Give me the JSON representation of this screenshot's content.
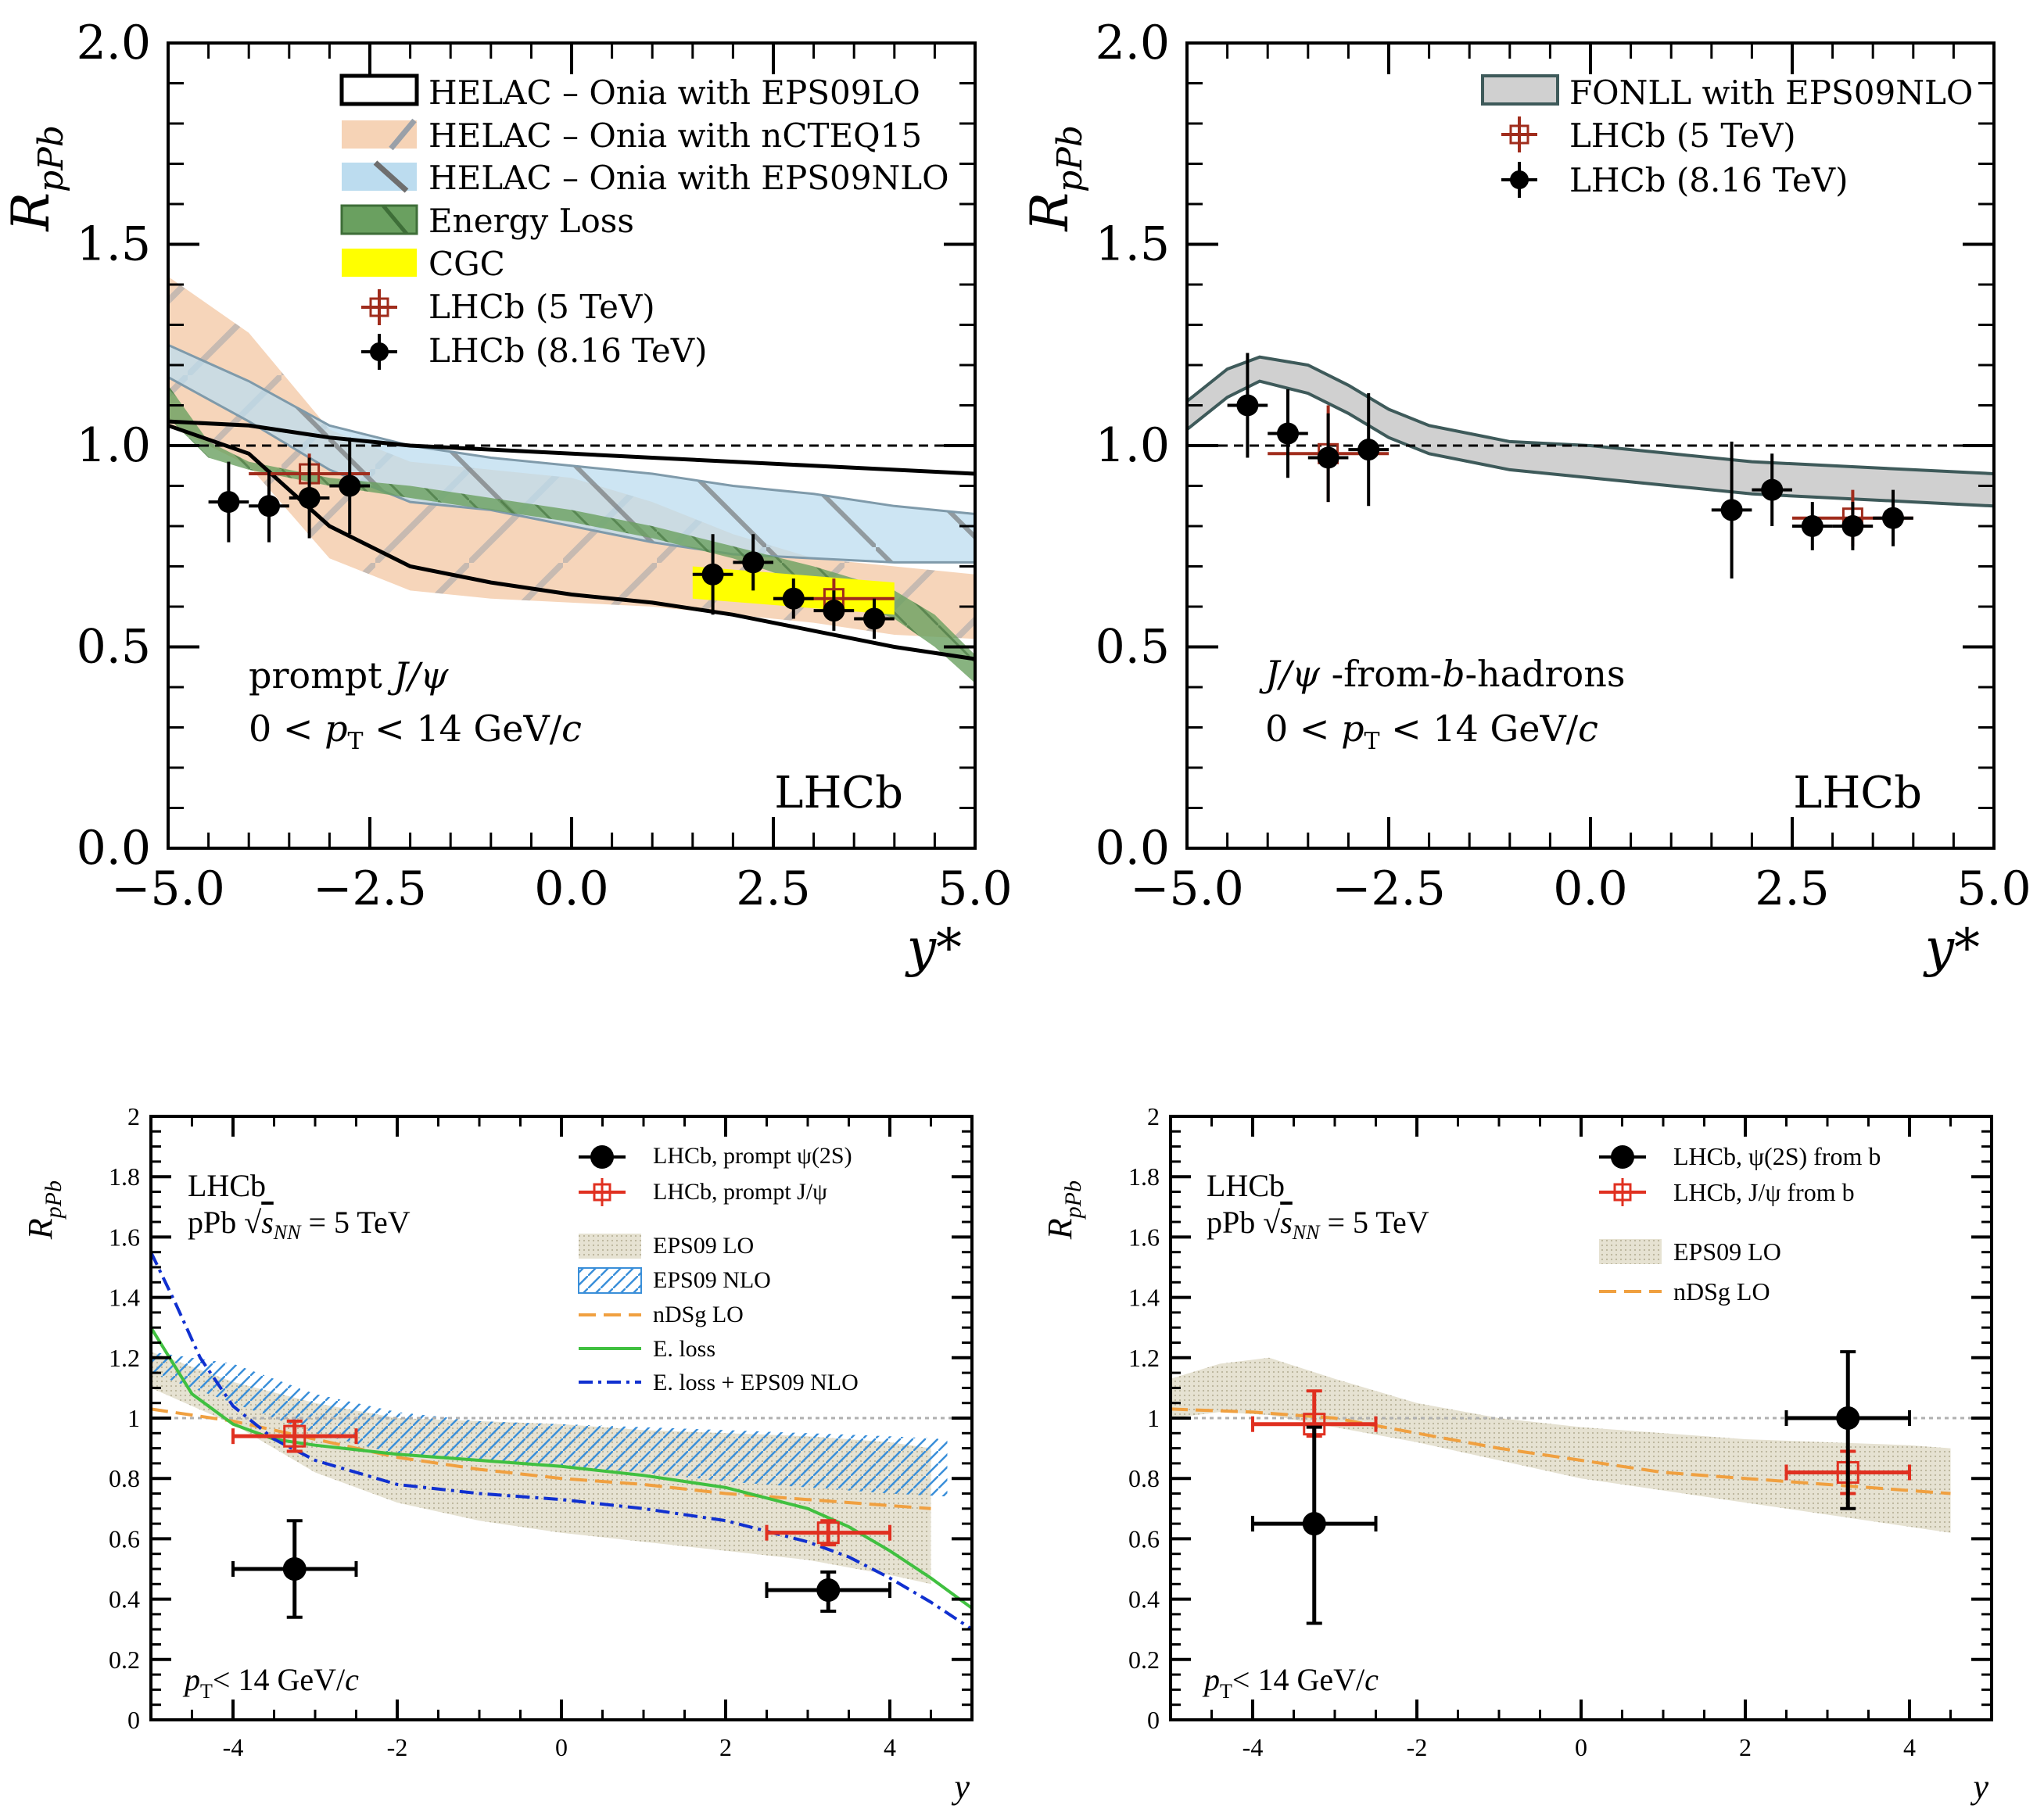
{
  "chart_data": [
    {
      "id": "panel-a",
      "type": "line",
      "ylabel_main": "R",
      "ylabel_sub": "pPb",
      "xlabel": "y*",
      "xlim": [
        -5,
        5
      ],
      "ylim": [
        0,
        2
      ],
      "xticks": [
        "−5.0",
        "−2.5",
        "0.0",
        "2.5",
        "5.0"
      ],
      "xtick_values": [
        -5,
        -2.5,
        0,
        2.5,
        5
      ],
      "yticks": [
        "0.0",
        "0.5",
        "1.0",
        "1.5",
        "2.0"
      ],
      "ytick_values": [
        0,
        0.5,
        1,
        1.5,
        2
      ],
      "reference_line": 1.0,
      "legend": [
        "HELAC – Onia with EPS09LO",
        "HELAC – Onia with nCTEQ15",
        "HELAC – Onia with EPS09NLO",
        "Energy Loss",
        "CGC",
        "LHCb (5 TeV)",
        "LHCb (8.16 TeV)"
      ],
      "annotations": [
        "prompt J/ψ",
        "0 < pT < 14 GeV/c",
        "LHCb"
      ],
      "bands": [
        {
          "name": "HELAC-Onia with EPS09LO",
          "x": [
            -5,
            -4,
            -3,
            -2,
            -1,
            0,
            1,
            2,
            3,
            4,
            5
          ],
          "low": [
            1.05,
            0.98,
            0.8,
            0.7,
            0.66,
            0.63,
            0.61,
            0.58,
            0.54,
            0.5,
            0.47
          ],
          "high": [
            1.06,
            1.05,
            1.02,
            1.0,
            0.99,
            0.98,
            0.97,
            0.96,
            0.95,
            0.94,
            0.93
          ]
        },
        {
          "name": "HELAC-Onia with nCTEQ15",
          "x": [
            -5,
            -4,
            -3,
            -2,
            -1,
            0,
            1,
            2,
            3,
            4,
            5
          ],
          "low": [
            1.05,
            0.95,
            0.72,
            0.64,
            0.62,
            0.61,
            0.6,
            0.58,
            0.56,
            0.53,
            0.52
          ],
          "high": [
            1.42,
            1.28,
            1.04,
            0.96,
            0.94,
            0.92,
            0.86,
            0.78,
            0.72,
            0.7,
            0.68
          ]
        },
        {
          "name": "HELAC-Onia with EPS09NLO",
          "x": [
            -5,
            -4,
            -3,
            -2,
            -1,
            0,
            1,
            2,
            3,
            4,
            5
          ],
          "low": [
            1.17,
            1.06,
            0.94,
            0.86,
            0.84,
            0.8,
            0.76,
            0.73,
            0.72,
            0.71,
            0.71
          ],
          "high": [
            1.25,
            1.16,
            1.05,
            1.0,
            0.97,
            0.95,
            0.93,
            0.9,
            0.88,
            0.85,
            0.83
          ]
        },
        {
          "name": "Energy Loss",
          "x": [
            -5,
            -4.5,
            -4,
            -3,
            -2,
            -1,
            0,
            1,
            2,
            3,
            3.5,
            4,
            4.5,
            5
          ],
          "low": [
            1.07,
            0.97,
            0.94,
            0.9,
            0.87,
            0.84,
            0.81,
            0.77,
            0.72,
            0.65,
            0.61,
            0.57,
            0.5,
            0.41
          ],
          "high": [
            1.15,
            1.01,
            0.96,
            0.92,
            0.9,
            0.87,
            0.84,
            0.8,
            0.75,
            0.7,
            0.67,
            0.64,
            0.58,
            0.48
          ]
        },
        {
          "name": "CGC",
          "x": [
            1.5,
            4.0
          ],
          "low": [
            0.62,
            0.58
          ],
          "high": [
            0.7,
            0.66
          ]
        }
      ],
      "series": [
        {
          "name": "LHCb (8.16 TeV)",
          "x": [
            -4.25,
            -3.75,
            -3.25,
            -2.75,
            1.75,
            2.25,
            2.75,
            3.25,
            3.75
          ],
          "y": [
            0.86,
            0.85,
            0.87,
            0.9,
            0.68,
            0.71,
            0.62,
            0.59,
            0.57
          ],
          "yerr": [
            0.1,
            0.09,
            0.1,
            0.12,
            0.1,
            0.07,
            0.05,
            0.05,
            0.05
          ],
          "xerr": 0.25
        },
        {
          "name": "LHCb (5 TeV)",
          "x": [
            -3.25,
            3.25
          ],
          "y": [
            0.93,
            0.62
          ],
          "yerr": [
            0.05,
            0.05
          ],
          "xerr": 0.75
        }
      ]
    },
    {
      "id": "panel-b",
      "type": "line",
      "ylabel_main": "R",
      "ylabel_sub": "pPb",
      "xlabel": "y*",
      "xlim": [
        -5,
        5
      ],
      "ylim": [
        0,
        2
      ],
      "xticks": [
        "−5.0",
        "−2.5",
        "0.0",
        "2.5",
        "5.0"
      ],
      "xtick_values": [
        -5,
        -2.5,
        0,
        2.5,
        5
      ],
      "yticks": [
        "0.0",
        "0.5",
        "1.0",
        "1.5",
        "2.0"
      ],
      "ytick_values": [
        0,
        0.5,
        1,
        1.5,
        2
      ],
      "reference_line": 1.0,
      "legend": [
        "FONLL with EPS09NLO",
        "LHCb (5 TeV)",
        "LHCb (8.16 TeV)"
      ],
      "annotations": [
        "J/ψ -from-b-hadrons",
        "0 < pT < 14 GeV/c",
        "LHCb"
      ],
      "bands": [
        {
          "name": "FONLL with EPS09NLO",
          "x": [
            -5,
            -4.5,
            -4.1,
            -3.5,
            -3,
            -2.5,
            -2,
            -1,
            0,
            1,
            2,
            3,
            4,
            5
          ],
          "low": [
            1.04,
            1.12,
            1.16,
            1.13,
            1.08,
            1.02,
            0.98,
            0.94,
            0.92,
            0.9,
            0.88,
            0.87,
            0.86,
            0.85
          ],
          "high": [
            1.11,
            1.19,
            1.22,
            1.2,
            1.15,
            1.09,
            1.05,
            1.01,
            1.0,
            0.98,
            0.96,
            0.95,
            0.94,
            0.93
          ]
        }
      ],
      "series": [
        {
          "name": "LHCb (8.16 TeV)",
          "x": [
            -4.25,
            -3.75,
            -3.25,
            -2.75,
            1.75,
            2.25,
            2.75,
            3.25,
            3.75
          ],
          "y": [
            1.1,
            1.03,
            0.97,
            0.99,
            0.84,
            0.89,
            0.8,
            0.8,
            0.82
          ],
          "yerr": [
            0.13,
            0.11,
            0.11,
            0.14,
            0.17,
            0.09,
            0.06,
            0.06,
            0.07
          ],
          "xerr": 0.25
        },
        {
          "name": "LHCb (5 TeV)",
          "x": [
            -3.25,
            3.25
          ],
          "y": [
            0.98,
            0.82
          ],
          "yerr": [
            0.12,
            0.07
          ],
          "xerr": 0.75
        }
      ]
    },
    {
      "id": "panel-c",
      "type": "line",
      "ylabel_main": "R",
      "ylabel_sub": "pPb",
      "xlabel": "y",
      "xlim": [
        -5,
        5
      ],
      "ylim": [
        0,
        2
      ],
      "xticks": [
        "-4",
        "-2",
        "0",
        "2",
        "4"
      ],
      "xtick_values": [
        -4,
        -2,
        0,
        2,
        4
      ],
      "yticks": [
        "0",
        "0.2",
        "0.4",
        "0.6",
        "0.8",
        "1",
        "1.2",
        "1.4",
        "1.6",
        "1.8",
        "2"
      ],
      "ytick_values": [
        0,
        0.2,
        0.4,
        0.6,
        0.8,
        1,
        1.2,
        1.4,
        1.6,
        1.8,
        2
      ],
      "reference_line": 1.0,
      "legend": [
        "LHCb, prompt ψ(2S)",
        "LHCb, prompt J/ψ",
        "EPS09 LO",
        "EPS09 NLO",
        "nDSg LO",
        "E. loss",
        "E. loss + EPS09 NLO"
      ],
      "annotations": [
        "LHCb",
        "pPb √sNN = 5 TeV",
        "pT < 14 GeV/c"
      ],
      "bands": [
        {
          "name": "EPS09 LO",
          "x": [
            -5,
            -4,
            -3,
            -2,
            -1,
            0,
            1,
            2,
            3,
            4,
            4.5
          ],
          "low": [
            1.1,
            0.98,
            0.82,
            0.72,
            0.66,
            0.62,
            0.59,
            0.56,
            0.53,
            0.48,
            0.45
          ],
          "high": [
            1.22,
            1.12,
            1.05,
            1.0,
            0.99,
            0.98,
            0.96,
            0.95,
            0.94,
            0.92,
            0.9
          ]
        },
        {
          "name": "EPS09 NLO",
          "x": [
            -5,
            -4,
            -3,
            -2,
            -1,
            0,
            1,
            2,
            3,
            4,
            4.7
          ],
          "low": [
            1.15,
            1.05,
            0.95,
            0.88,
            0.86,
            0.84,
            0.82,
            0.79,
            0.77,
            0.75,
            0.74
          ],
          "high": [
            1.22,
            1.18,
            1.08,
            1.02,
            0.99,
            0.98,
            0.97,
            0.96,
            0.95,
            0.94,
            0.93
          ]
        }
      ],
      "curves": [
        {
          "name": "nDSg LO",
          "x": [
            -5,
            -4,
            -3,
            -2,
            -1,
            0,
            1,
            2,
            3,
            4,
            4.5
          ],
          "y": [
            1.03,
            0.99,
            0.93,
            0.87,
            0.83,
            0.8,
            0.78,
            0.75,
            0.73,
            0.71,
            0.7
          ]
        },
        {
          "name": "E. loss",
          "x": [
            -5,
            -4.5,
            -4,
            -3.5,
            -3,
            -2,
            -1,
            0,
            1,
            2,
            3,
            3.5,
            4,
            4.5,
            5
          ],
          "y": [
            1.3,
            1.08,
            0.98,
            0.93,
            0.91,
            0.88,
            0.86,
            0.84,
            0.81,
            0.77,
            0.7,
            0.64,
            0.56,
            0.47,
            0.37
          ]
        },
        {
          "name": "E. loss + EPS09 NLO",
          "x": [
            -5,
            -4.7,
            -4.4,
            -4,
            -3.5,
            -3,
            -2,
            -1,
            0,
            1,
            2,
            3,
            3.5,
            4,
            4.5,
            5
          ],
          "y": [
            1.55,
            1.38,
            1.2,
            1.04,
            0.93,
            0.86,
            0.78,
            0.75,
            0.73,
            0.7,
            0.66,
            0.59,
            0.54,
            0.47,
            0.39,
            0.3
          ]
        }
      ],
      "series": [
        {
          "name": "LHCb, prompt ψ(2S)",
          "x": [
            -3.25,
            3.25
          ],
          "y": [
            0.5,
            0.43
          ],
          "yerr_up": [
            0.16,
            0.06
          ],
          "yerr_down": [
            0.16,
            0.07
          ],
          "xerr": 0.75
        },
        {
          "name": "LHCb, prompt J/ψ",
          "x": [
            -3.25,
            3.25
          ],
          "y": [
            0.94,
            0.62
          ],
          "yerr_up": [
            0.05,
            0.04
          ],
          "yerr_down": [
            0.05,
            0.04
          ],
          "xerr": 0.75
        }
      ]
    },
    {
      "id": "panel-d",
      "type": "line",
      "ylabel_main": "R",
      "ylabel_sub": "pPb",
      "xlabel": "y",
      "xlim": [
        -5,
        5
      ],
      "ylim": [
        0,
        2
      ],
      "xticks": [
        "-4",
        "-2",
        "0",
        "2",
        "4"
      ],
      "xtick_values": [
        -4,
        -2,
        0,
        2,
        4
      ],
      "yticks": [
        "0",
        "0.2",
        "0.4",
        "0.6",
        "0.8",
        "1",
        "1.2",
        "1.4",
        "1.6",
        "1.8",
        "2"
      ],
      "ytick_values": [
        0,
        0.2,
        0.4,
        0.6,
        0.8,
        1,
        1.2,
        1.4,
        1.6,
        1.8,
        2
      ],
      "reference_line": 1.0,
      "legend": [
        "LHCb, ψ(2S) from b",
        "LHCb, J/ψ from b",
        "EPS09 LO",
        "nDSg LO"
      ],
      "annotations": [
        "LHCb",
        "pPb √sNN = 5 TeV",
        "pT < 14 GeV/c"
      ],
      "bands": [
        {
          "name": "EPS09 LO",
          "x": [
            -5,
            -4.4,
            -3.8,
            -3,
            -2,
            -1,
            0,
            1,
            2,
            3,
            4,
            4.5
          ],
          "low": [
            1.0,
            1.02,
            1.01,
            0.97,
            0.92,
            0.86,
            0.8,
            0.76,
            0.72,
            0.68,
            0.64,
            0.62
          ]
        },
        {
          "name": "EPS09 LO upper",
          "x": [
            -5,
            -4.4,
            -3.8,
            -3,
            -2,
            -1,
            0,
            1,
            2,
            3,
            4,
            4.5
          ],
          "low": [
            1.13,
            1.18,
            1.2,
            1.13,
            1.05,
            1.0,
            0.97,
            0.95,
            0.93,
            0.92,
            0.91,
            0.9
          ]
        }
      ],
      "curves": [
        {
          "name": "nDSg LO",
          "x": [
            -5,
            -4,
            -3,
            -2,
            -1,
            0,
            1,
            2,
            3,
            4,
            4.5
          ],
          "y": [
            1.03,
            1.02,
            1.0,
            0.95,
            0.9,
            0.86,
            0.82,
            0.8,
            0.78,
            0.76,
            0.75
          ]
        }
      ],
      "series": [
        {
          "name": "LHCb, ψ(2S) from b",
          "x": [
            -3.25,
            3.25
          ],
          "y": [
            0.65,
            1.0
          ],
          "yerr_up": [
            0.32,
            0.22
          ],
          "yerr_down": [
            0.33,
            0.3
          ],
          "xerr": 0.75
        },
        {
          "name": "LHCb, J/ψ from b",
          "x": [
            -3.25,
            3.25
          ],
          "y": [
            0.98,
            0.82
          ],
          "yerr_up": [
            0.11,
            0.07
          ],
          "yerr_down": [
            0.04,
            0.07
          ],
          "xerr": 0.75
        }
      ]
    }
  ],
  "panels_text": {
    "a": {
      "legend": [
        "HELAC – Onia with EPS09LO",
        "HELAC – Onia with nCTEQ15",
        "HELAC – Onia with EPS09NLO",
        "Energy Loss",
        "CGC",
        "LHCb (5 TeV)",
        "LHCb (8.16 TeV)"
      ],
      "ann1_a": "prompt ",
      "ann1_b": "J/ψ",
      "ann2_a": "0 < ",
      "ann2_b": "p",
      "ann2_c": "T",
      "ann2_d": " < 14 GeV/",
      "ann2_e": "c",
      "brand": "LHCb",
      "ylab_main": "R",
      "ylab_sub": "pPb",
      "xlab": "y*"
    },
    "b": {
      "legend": [
        "FONLL with EPS09NLO",
        "LHCb (5 TeV)",
        "LHCb (8.16 TeV)"
      ],
      "ann1_a": "J/ψ",
      "ann1_b": " -from-",
      "ann1_c": "b",
      "ann1_d": "-hadrons",
      "ann2_a": "0 < ",
      "ann2_b": "p",
      "ann2_c": "T",
      "ann2_d": " < 14 GeV/",
      "ann2_e": "c",
      "brand": "LHCb",
      "ylab_main": "R",
      "ylab_sub": "pPb",
      "xlab": "y*"
    },
    "c": {
      "legend": [
        "LHCb, prompt ψ(2S)",
        "LHCb, prompt J/ψ",
        "EPS09 LO",
        "EPS09 NLO",
        "nDSg LO",
        "E. loss",
        "E. loss + EPS09 NLO"
      ],
      "brand": "LHCb",
      "energy_a": "pPb ",
      "energy_b": "√",
      "energy_c": "s",
      "energy_d": "NN",
      "energy_e": " = 5 TeV",
      "pt_a": "p",
      "pt_b": "T",
      "pt_c": "< 14 GeV/",
      "pt_d": "c",
      "ylab_main": "R",
      "ylab_sub": "pPb",
      "xlab": "y"
    },
    "d": {
      "legend": [
        "LHCb, ψ(2S) from b",
        "LHCb, J/ψ from b",
        "EPS09 LO",
        "nDSg LO"
      ],
      "brand": "LHCb",
      "energy_a": "pPb ",
      "energy_b": "√",
      "energy_c": "s",
      "energy_d": "NN",
      "energy_e": " = 5 TeV",
      "pt_a": "p",
      "pt_b": "T",
      "pt_c": "< 14 GeV/",
      "pt_d": "c",
      "ylab_main": "R",
      "ylab_sub": "pPb",
      "xlab": "y"
    }
  },
  "colors": {
    "helac_lo": "#000000",
    "nCTEQ15": "#f6d3b6",
    "eps09nlo_band": "#bcdcef",
    "energy_loss": "#6aa060",
    "cgc": "#ffff00",
    "lhcb5": "#a02c1c",
    "fonll": "#d0d0d0",
    "red_marker": "#e03020",
    "eps09lo_c": "#d9d5c2",
    "eps09nlo_c": "#3a8fd9",
    "ndsg": "#f0a040",
    "eloss_green": "#40c040",
    "eloss_blue": "#1030d0"
  }
}
